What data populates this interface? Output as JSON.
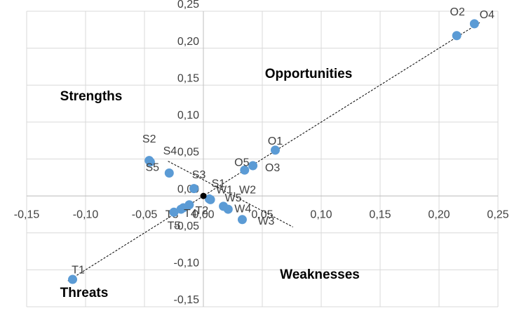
{
  "chart_data": {
    "type": "scatter",
    "xlim": [
      -0.15,
      0.25
    ],
    "ylim": [
      -0.15,
      0.25
    ],
    "xticks": [
      {
        "value": -0.15,
        "label": "-0,15"
      },
      {
        "value": -0.1,
        "label": "-0,10"
      },
      {
        "value": -0.05,
        "label": "-0,05"
      },
      {
        "value": 0,
        "label": "0,00"
      },
      {
        "value": 0.05,
        "label": "0,05"
      },
      {
        "value": 0.1,
        "label": "0,10"
      },
      {
        "value": 0.15,
        "label": "0,15"
      },
      {
        "value": 0.2,
        "label": "0,20"
      },
      {
        "value": 0.25,
        "label": "0,25"
      }
    ],
    "yticks": [
      {
        "value": -0.15,
        "label": "-0,15"
      },
      {
        "value": -0.1,
        "label": "-0,10"
      },
      {
        "value": -0.05,
        "label": "-0,05"
      },
      {
        "value": 0,
        "label": "0,00"
      },
      {
        "value": 0.05,
        "label": "0,05"
      },
      {
        "value": 0.1,
        "label": "0,10"
      },
      {
        "value": 0.15,
        "label": "0,15"
      },
      {
        "value": 0.2,
        "label": "0,20"
      },
      {
        "value": 0.25,
        "label": "0,25"
      }
    ],
    "grid": true,
    "color": "#5b9bd5",
    "points": [
      {
        "label": "O4",
        "x": 0.23,
        "y": 0.233
      },
      {
        "label": "O2",
        "x": 0.215,
        "y": 0.217
      },
      {
        "label": "O1",
        "x": 0.061,
        "y": 0.062
      },
      {
        "label": "O3",
        "x": 0.042,
        "y": 0.041
      },
      {
        "label": "O5",
        "x": 0.035,
        "y": 0.035
      },
      {
        "label": "S2",
        "x": -0.046,
        "y": 0.048
      },
      {
        "label": "S4",
        "x": -0.045,
        "y": 0.046
      },
      {
        "label": "S5",
        "x": -0.029,
        "y": 0.031
      },
      {
        "label": "S3",
        "x": -0.008,
        "y": 0.01
      },
      {
        "label": "S1",
        "x": 0.005,
        "y": -0.004
      },
      {
        "label": "W1, W2",
        "x": 0.006,
        "y": -0.005
      },
      {
        "label": "W5",
        "x": 0.017,
        "y": -0.014
      },
      {
        "label": "W4",
        "x": 0.021,
        "y": -0.018
      },
      {
        "label": "W3",
        "x": 0.033,
        "y": -0.032
      },
      {
        "label": "T2",
        "x": -0.012,
        "y": -0.012
      },
      {
        "label": "T3",
        "x": -0.019,
        "y": -0.018
      },
      {
        "label": "T4",
        "x": -0.017,
        "y": -0.016
      },
      {
        "label": "T5",
        "x": -0.025,
        "y": -0.022
      },
      {
        "label": "T1",
        "x": -0.111,
        "y": -0.113
      }
    ],
    "origin_point": {
      "x": 0,
      "y": 0,
      "color": "#000000"
    },
    "lines": [
      {
        "x": [
          -0.115,
          0.235
        ],
        "y": [
          -0.115,
          0.235
        ]
      },
      {
        "x": [
          -0.03,
          0.076
        ],
        "y": [
          0.047,
          -0.042
        ]
      }
    ],
    "annotations": [
      "Opportunities",
      "Strengths",
      "Weaknesses",
      "Threats"
    ]
  }
}
